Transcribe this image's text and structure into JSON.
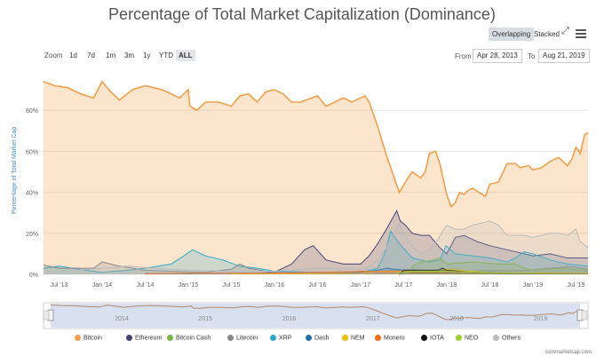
{
  "title": "Percentage of Total Market Capitalization (Dominance)",
  "toolbar": {
    "view_options": [
      "Overlapping",
      "Stacked"
    ],
    "active_view": "Overlapping",
    "zoom_label": "Zoom",
    "zoom_options": [
      "1d",
      "7d",
      "1m",
      "3m",
      "1y",
      "YTD",
      "ALL"
    ],
    "active_zoom": "ALL",
    "from_label": "From",
    "from_date": "Apr 28, 2013",
    "to_label": "To",
    "to_date": "Aug 21, 2019"
  },
  "credit": "coinmarketcap.com",
  "colors": {
    "Bitcoin": "#f0a04b",
    "Ethereum": "#434476",
    "Bitcoin Cash": "#7cb342",
    "Litecoin": "#888888",
    "XRP": "#29a9c9",
    "Dash": "#1e6fb0",
    "NEM": "#e5c200",
    "Monero": "#ff6a13",
    "IOTA": "#111111",
    "NEO": "#9ed12a",
    "Others": "#bbbbbb"
  },
  "chart_data": {
    "type": "area",
    "title": "Percentage of Total Market Capitalization (Dominance)",
    "xlabel": "",
    "ylabel": "Percentage of Total Market Cap",
    "ylim": [
      0,
      100
    ],
    "yticks": [
      0,
      20,
      40,
      60,
      80
    ],
    "ytick_labels": [
      "0%",
      "20%",
      "40%",
      "60%",
      "80%"
    ],
    "xlim": [
      2013.32,
      2019.64
    ],
    "xticks": [
      2013.5,
      2014.0,
      2014.5,
      2015.0,
      2015.5,
      2016.0,
      2016.5,
      2017.0,
      2017.5,
      2018.0,
      2018.5,
      2019.0,
      2019.5
    ],
    "xtick_labels": [
      "Jul '13",
      "Jan '14",
      "Jul '14",
      "Jan '15",
      "Jul '15",
      "Jan '16",
      "Jul '16",
      "Jan '17",
      "Jul '17",
      "Jan '18",
      "Jul '18",
      "Jan '19",
      "Jul '19"
    ],
    "navigator_labels": [
      "2014",
      "2015",
      "2016",
      "2017",
      "2018",
      "2019"
    ],
    "navigator_positions": [
      2014.0,
      2015.0,
      2016.0,
      2017.0,
      2018.0,
      2019.0
    ],
    "legend_position": "bottom",
    "series": [
      {
        "name": "Bitcoin",
        "x": [
          2013.32,
          2013.45,
          2013.6,
          2013.75,
          2013.9,
          2014.0,
          2014.1,
          2014.2,
          2014.35,
          2014.5,
          2014.6,
          2014.7,
          2014.8,
          2014.9,
          2015.0,
          2015.02,
          2015.1,
          2015.2,
          2015.35,
          2015.5,
          2015.6,
          2015.7,
          2015.8,
          2015.9,
          2016.0,
          2016.1,
          2016.2,
          2016.3,
          2016.5,
          2016.6,
          2016.8,
          2016.9,
          2017.0,
          2017.05,
          2017.1,
          2017.2,
          2017.25,
          2017.3,
          2017.35,
          2017.4,
          2017.45,
          2017.55,
          2017.6,
          2017.7,
          2017.75,
          2017.8,
          2017.87,
          2017.92,
          2018.0,
          2018.05,
          2018.1,
          2018.15,
          2018.2,
          2018.25,
          2018.3,
          2018.45,
          2018.5,
          2018.6,
          2018.7,
          2018.8,
          2018.85,
          2018.95,
          2019.0,
          2019.1,
          2019.2,
          2019.3,
          2019.4,
          2019.45,
          2019.5,
          2019.55,
          2019.6,
          2019.64
        ],
        "values": [
          94,
          92,
          91,
          88,
          86,
          94,
          89,
          85,
          90,
          92,
          91,
          90,
          88,
          86,
          90,
          82,
          80,
          84,
          84,
          82,
          87,
          88,
          84,
          89,
          90,
          88,
          84,
          84,
          87,
          82,
          86,
          84,
          86,
          87,
          84,
          72,
          65,
          58,
          52,
          46,
          40,
          47,
          50,
          47,
          50,
          59,
          60,
          54,
          39,
          33,
          35,
          40,
          39,
          41,
          42,
          38,
          44,
          45,
          54,
          54,
          52,
          53,
          51,
          52,
          55,
          57,
          53,
          56,
          62,
          59,
          68,
          69
        ]
      },
      {
        "name": "Ethereum",
        "x": [
          2015.6,
          2015.8,
          2016.0,
          2016.2,
          2016.35,
          2016.45,
          2016.6,
          2016.8,
          2017.0,
          2017.1,
          2017.2,
          2017.3,
          2017.42,
          2017.46,
          2017.52,
          2017.6,
          2017.7,
          2017.8,
          2017.92,
          2018.0,
          2018.1,
          2018.2,
          2018.3,
          2018.35,
          2018.5,
          2018.7,
          2018.9,
          2019.0,
          2019.2,
          2019.4,
          2019.64
        ],
        "values": [
          0.5,
          0.6,
          1,
          5,
          12,
          14,
          7,
          5,
          5,
          9,
          15,
          22,
          31,
          26,
          24,
          20,
          19,
          19,
          13,
          10,
          18,
          19,
          17,
          16,
          14,
          12,
          10,
          9,
          10,
          8,
          8
        ]
      },
      {
        "name": "XRP",
        "x": [
          2013.32,
          2013.5,
          2013.8,
          2014.0,
          2014.3,
          2014.5,
          2014.8,
          2014.95,
          2015.05,
          2015.2,
          2015.4,
          2015.6,
          2015.8,
          2016.0,
          2016.5,
          2017.0,
          2017.2,
          2017.28,
          2017.35,
          2017.45,
          2017.6,
          2017.8,
          2017.92,
          2017.99,
          2018.1,
          2018.3,
          2018.5,
          2018.7,
          2018.8,
          2018.9,
          2019.0,
          2019.2,
          2019.4,
          2019.64
        ],
        "values": [
          3,
          4,
          2,
          1,
          2,
          3,
          5,
          9,
          12,
          9,
          7,
          4,
          3,
          1.5,
          1,
          1,
          3,
          10,
          21,
          15,
          8,
          6,
          7,
          14,
          10,
          9,
          8,
          6,
          8,
          11,
          10,
          7,
          5,
          4
        ]
      },
      {
        "name": "Litecoin",
        "x": [
          2013.32,
          2013.5,
          2013.9,
          2014.0,
          2014.2,
          2014.5,
          2014.8,
          2015.0,
          2015.2,
          2015.5,
          2015.6,
          2015.7,
          2015.9,
          2016.0,
          2016.5,
          2017.0,
          2017.2,
          2017.4,
          2017.6,
          2017.9,
          2018.0,
          2018.3,
          2018.6,
          2018.9,
          2019.0,
          2019.2,
          2019.4,
          2019.5,
          2019.64
        ],
        "values": [
          4.5,
          3,
          3,
          6,
          4,
          2,
          1.5,
          1.2,
          1,
          2.5,
          5,
          3,
          1.5,
          1,
          1,
          1,
          1.5,
          2,
          2.3,
          1.7,
          1.8,
          1.6,
          1.8,
          1.8,
          2.2,
          3,
          3.7,
          3.5,
          2.5
        ]
      },
      {
        "name": "Bitcoin Cash",
        "x": [
          2017.58,
          2017.6,
          2017.7,
          2017.85,
          2017.92,
          2018.0,
          2018.3,
          2018.6,
          2018.8,
          2018.9,
          2019.0,
          2019.3,
          2019.5,
          2019.64
        ],
        "values": [
          0,
          4,
          6,
          7,
          8,
          5,
          6,
          5,
          5,
          3,
          2,
          3,
          2.3,
          2.2
        ]
      },
      {
        "name": "Dash",
        "x": [
          2014.5,
          2015.0,
          2015.5,
          2016.0,
          2016.5,
          2017.0,
          2017.2,
          2017.3,
          2017.5,
          2017.9,
          2018.2,
          2018.6,
          2019.0,
          2019.64
        ],
        "values": [
          0.4,
          0.3,
          0.6,
          0.5,
          1,
          1,
          2,
          3,
          2,
          2,
          1,
          0.8,
          0.5,
          0.4
        ]
      },
      {
        "name": "NEM",
        "x": [
          2015.5,
          2016.0,
          2016.5,
          2017.0,
          2017.2,
          2017.5,
          2017.9,
          2018.0,
          2018.5,
          2019.0,
          2019.64
        ],
        "values": [
          0.2,
          0.2,
          0.3,
          0.5,
          1.5,
          1.5,
          2,
          2.5,
          0.8,
          0.3,
          0.2
        ]
      },
      {
        "name": "Monero",
        "x": [
          2014.5,
          2015.0,
          2016.0,
          2016.5,
          2016.8,
          2017.0,
          2017.5,
          2018.0,
          2018.5,
          2019.0,
          2019.64
        ],
        "values": [
          0.3,
          0.5,
          0.5,
          1,
          1.2,
          1.5,
          1.2,
          1.3,
          0.8,
          0.7,
          0.5
        ]
      },
      {
        "name": "IOTA",
        "x": [
          2017.45,
          2017.5,
          2017.9,
          2017.95,
          2018.0,
          2018.3,
          2018.6,
          2019.0,
          2019.64
        ],
        "values": [
          0,
          2,
          2,
          3,
          2,
          1,
          0.5,
          0.3,
          0.2
        ]
      },
      {
        "name": "NEO",
        "x": [
          2017.4,
          2017.6,
          2018.0,
          2018.5,
          2019.0,
          2019.64
        ],
        "values": [
          0.3,
          1.5,
          1.5,
          0.8,
          0.5,
          0.4
        ]
      },
      {
        "name": "Others",
        "x": [
          2013.32,
          2013.7,
          2014.0,
          2014.3,
          2014.6,
          2015.0,
          2015.5,
          2016.0,
          2016.5,
          2016.8,
          2017.0,
          2017.1,
          2017.2,
          2017.3,
          2017.35,
          2017.4,
          2017.45,
          2017.5,
          2017.6,
          2017.7,
          2017.8,
          2017.9,
          2017.95,
          2018.0,
          2018.1,
          2018.2,
          2018.3,
          2018.4,
          2018.5,
          2018.6,
          2018.7,
          2018.9,
          2019.0,
          2019.2,
          2019.3,
          2019.4,
          2019.5,
          2019.55,
          2019.64
        ],
        "values": [
          1,
          2,
          3,
          4,
          3,
          2,
          1.5,
          1.5,
          3,
          3,
          2.5,
          4,
          7,
          13,
          18,
          21,
          25,
          20,
          14,
          10,
          12,
          17,
          21,
          24,
          22,
          22,
          24,
          25,
          26,
          24,
          19,
          19,
          18,
          20,
          20,
          19,
          22,
          16,
          13
        ]
      }
    ]
  },
  "legend": [
    "Bitcoin",
    "Ethereum",
    "Bitcoin Cash",
    "Litecoin",
    "XRP",
    "Dash",
    "NEM",
    "Monero",
    "IOTA",
    "NEO",
    "Others"
  ]
}
